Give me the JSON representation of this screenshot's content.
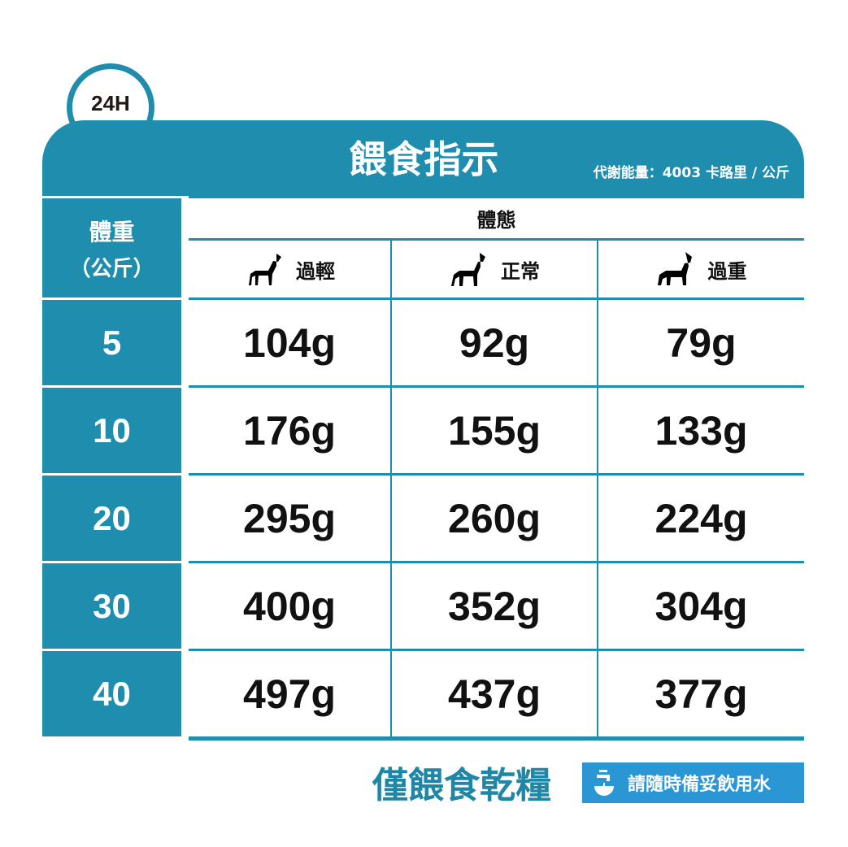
{
  "badge": {
    "label": "24H",
    "icon": "clock-icon"
  },
  "header": {
    "title": "餵食指示",
    "energy": "代謝能量：4003 卡路里 / 公斤"
  },
  "table": {
    "weight_header_line1": "體重",
    "weight_header_line2": "（公斤）",
    "body_condition_header": "體態",
    "columns": [
      {
        "label": "過輕",
        "icon": "thin-dog-icon"
      },
      {
        "label": "正常",
        "icon": "normal-dog-icon"
      },
      {
        "label": "過重",
        "icon": "overweight-dog-icon"
      }
    ],
    "rows": [
      {
        "weight": "5",
        "values": [
          "104g",
          "92g",
          "79g"
        ]
      },
      {
        "weight": "10",
        "values": [
          "176g",
          "155g",
          "133g"
        ]
      },
      {
        "weight": "20",
        "values": [
          "295g",
          "260g",
          "224g"
        ]
      },
      {
        "weight": "30",
        "values": [
          "400g",
          "352g",
          "304g"
        ]
      },
      {
        "weight": "40",
        "values": [
          "497g",
          "437g",
          "377g"
        ]
      }
    ]
  },
  "footer": {
    "dry_food_only": "僅餵食乾糧",
    "water_note": "請隨時備妥飲用水",
    "water_icon": "water-tap-icon"
  },
  "colors": {
    "teal": "#1f8dad",
    "water_blue": "#2a96d4"
  }
}
